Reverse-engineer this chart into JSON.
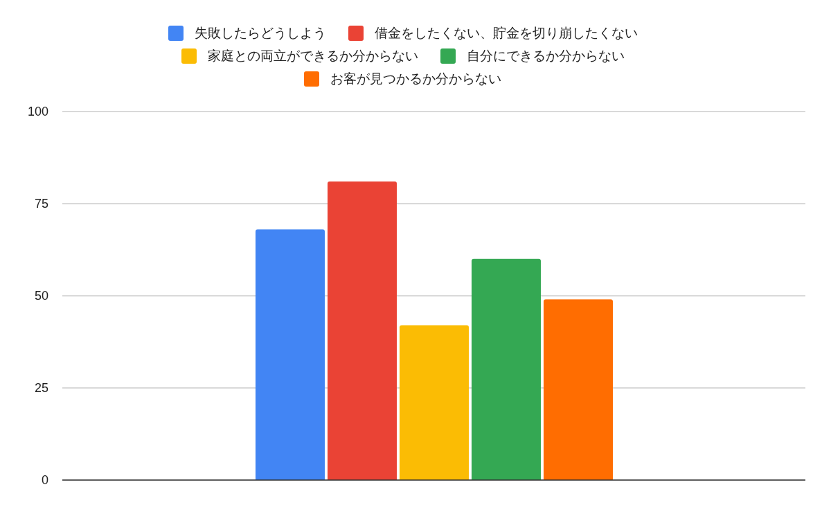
{
  "chart_data": {
    "type": "bar",
    "categories": [
      null
    ],
    "series": [
      {
        "name": "失敗したらどうしよう",
        "color": "#4285f4",
        "values": [
          68
        ]
      },
      {
        "name": "借金をしたくない、貯金を切り崩したくない",
        "color": "#ea4335",
        "values": [
          81
        ]
      },
      {
        "name": "家庭との両立ができるか分からない",
        "color": "#fbbc04",
        "values": [
          42
        ]
      },
      {
        "name": "自分にできるか分からない",
        "color": "#34a853",
        "values": [
          60
        ]
      },
      {
        "name": "お客が見つかるか分からない",
        "color": "#ff6d01",
        "values": [
          49
        ]
      }
    ],
    "ylim": [
      0,
      100
    ],
    "yticks": [
      0,
      25,
      50,
      75,
      100
    ],
    "grid": "y",
    "legend": "top"
  }
}
